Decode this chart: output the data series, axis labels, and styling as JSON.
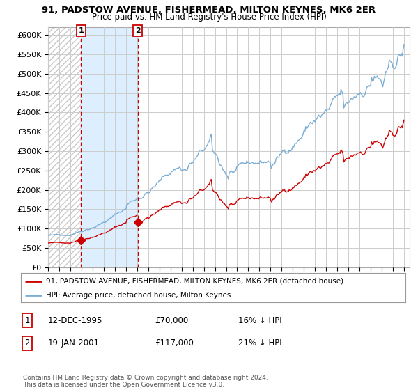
{
  "title_line1": "91, PADSTOW AVENUE, FISHERMEAD, MILTON KEYNES, MK6 2ER",
  "title_line2": "Price paid vs. HM Land Registry's House Price Index (HPI)",
  "ylim": [
    0,
    620000
  ],
  "yticks": [
    0,
    50000,
    100000,
    150000,
    200000,
    250000,
    300000,
    350000,
    400000,
    450000,
    500000,
    550000,
    600000
  ],
  "ytick_labels": [
    "£0",
    "£50K",
    "£100K",
    "£150K",
    "£200K",
    "£250K",
    "£300K",
    "£350K",
    "£400K",
    "£450K",
    "£500K",
    "£550K",
    "£600K"
  ],
  "legend_line1": "91, PADSTOW AVENUE, FISHERMEAD, MILTON KEYNES, MK6 2ER (detached house)",
  "legend_line2": "HPI: Average price, detached house, Milton Keynes",
  "sale1_date": "12-DEC-1995",
  "sale1_price": "£70,000",
  "sale1_hpi": "16% ↓ HPI",
  "sale2_date": "19-JAN-2001",
  "sale2_price": "£117,000",
  "sale2_hpi": "21% ↓ HPI",
  "footer": "Contains HM Land Registry data © Crown copyright and database right 2024.\nThis data is licensed under the Open Government Licence v3.0.",
  "sale1_x": 1995.96,
  "sale1_y": 70000,
  "sale2_x": 2001.05,
  "sale2_y": 117000,
  "line_color_property": "#cc0000",
  "line_color_hpi": "#7aadd4",
  "marker_color": "#cc0000",
  "grid_color": "#cccccc",
  "hatch_color": "#c8c8c8",
  "shade_color": "#ddeeff",
  "xlim_left": 1993.0,
  "xlim_right": 2025.5
}
